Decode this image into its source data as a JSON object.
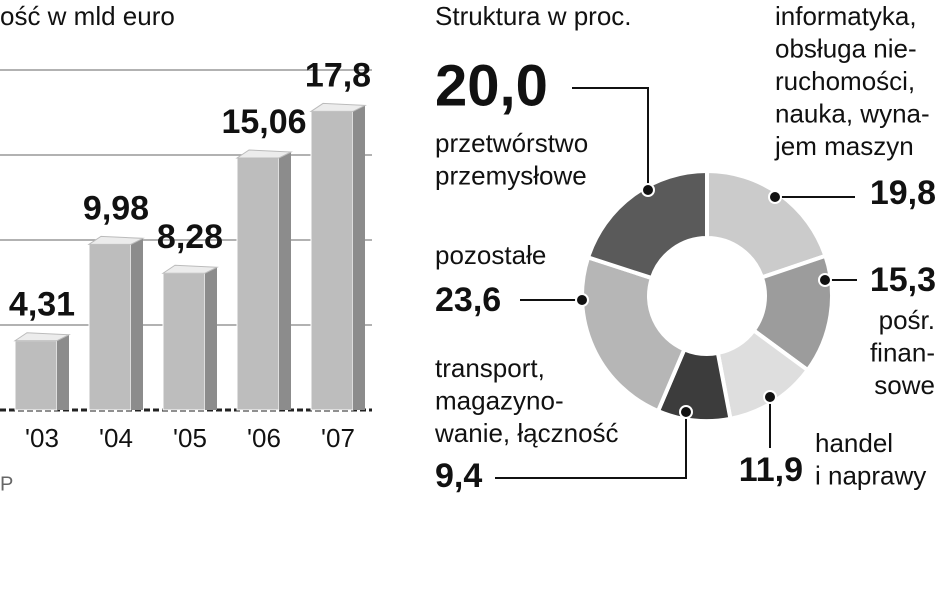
{
  "chart_data": [
    {
      "type": "bar",
      "title": "ość w mld euro",
      "source": "P",
      "categories": [
        "'03",
        "'04",
        "'05",
        "'06",
        "'07"
      ],
      "values": [
        4.31,
        9.98,
        8.28,
        15.06,
        17.8
      ],
      "value_labels": [
        "4,31",
        "9,98",
        "8,28",
        "15,06",
        "17,8"
      ],
      "color": "#bdbdbd",
      "ylim": [
        0,
        20
      ],
      "yticks": [
        0,
        5,
        10,
        15,
        20
      ],
      "grid": true
    },
    {
      "type": "donut",
      "title": "Struktura w proc.",
      "categories": [
        [
          "informatyka,",
          "obsługa nie-",
          "ruchomości,",
          "nauka, wyna-",
          "jem maszyn"
        ],
        [
          "pośr.",
          "finan-",
          "sowe"
        ],
        [
          "handel",
          "i naprawy"
        ],
        [
          "transport,",
          "magazyno-",
          "wanie, łączność"
        ],
        [
          "pozostałe"
        ],
        [
          "przetwórstwo",
          "przemysłowe"
        ]
      ],
      "values": [
        19.8,
        15.3,
        11.9,
        9.4,
        23.6,
        20.0
      ],
      "value_labels": [
        "19,8",
        "15,3",
        "11,9",
        "9,4",
        "23,6",
        "20,0"
      ],
      "colors": [
        "#cbcbcb",
        "#9c9c9c",
        "#dedede",
        "#3c3c3c",
        "#b6b6b6",
        "#5a5a5a"
      ]
    }
  ]
}
